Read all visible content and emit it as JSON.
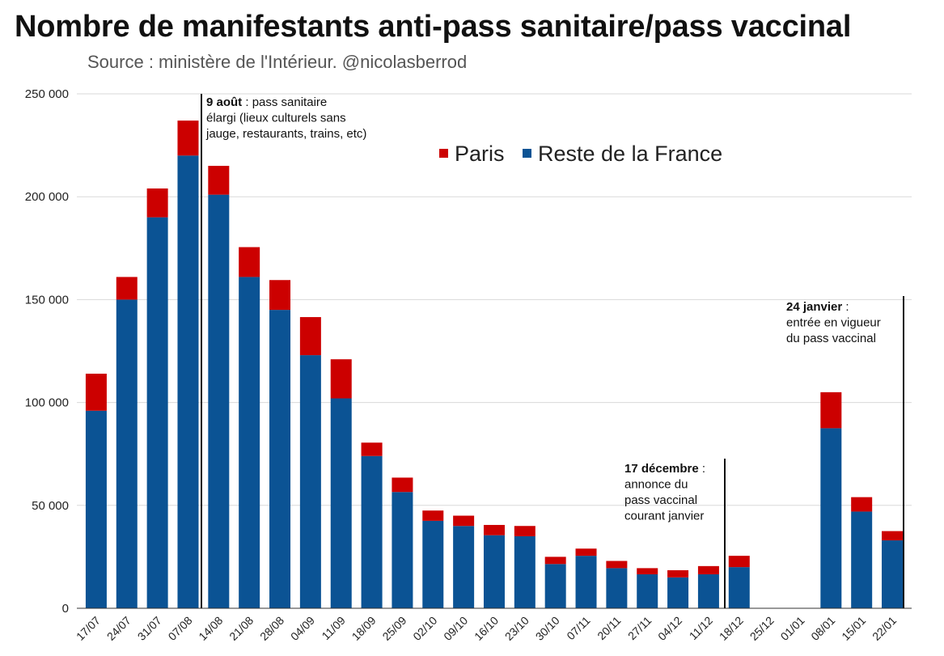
{
  "chart_data": {
    "type": "bar",
    "stacked": true,
    "title": "Nombre de manifestants anti-pass sanitaire/pass vaccinal",
    "subtitle": "Source : ministère de l'Intérieur. @nicolasberrod",
    "xlabel": "",
    "ylabel": "",
    "ylim": [
      0,
      250000
    ],
    "yticks": [
      0,
      50000,
      100000,
      150000,
      200000,
      250000
    ],
    "ytick_labels": [
      "0",
      "50 000",
      "100 000",
      "150 000",
      "200 000",
      "250 000"
    ],
    "grid": true,
    "legend_position": "top-center",
    "categories": [
      "17/07",
      "24/07",
      "31/07",
      "07/08",
      "14/08",
      "21/08",
      "28/08",
      "04/09",
      "11/09",
      "18/09",
      "25/09",
      "02/10",
      "09/10",
      "16/10",
      "23/10",
      "30/10",
      "07/11",
      "20/11",
      "27/11",
      "04/12",
      "11/12",
      "18/12",
      "25/12",
      "01/01",
      "08/01",
      "15/01",
      "22/01"
    ],
    "series": [
      {
        "name": "Reste de la France",
        "color": "#0b5394",
        "values": [
          96000,
          150000,
          190000,
          220000,
          201000,
          161000,
          145000,
          123000,
          102000,
          74000,
          56500,
          42500,
          40000,
          35500,
          35000,
          21500,
          25500,
          19500,
          16500,
          15000,
          16500,
          20000,
          0,
          0,
          87500,
          47000,
          33000
        ]
      },
      {
        "name": "Paris",
        "color": "#cc0000",
        "values": [
          18000,
          11000,
          14000,
          17000,
          14000,
          14500,
          14500,
          18500,
          19000,
          6500,
          7000,
          5000,
          5000,
          5000,
          5000,
          3500,
          3500,
          3500,
          3000,
          3500,
          4000,
          5500,
          0,
          0,
          17500,
          7000,
          4500
        ]
      }
    ],
    "annotations": [
      {
        "after_category": "07/08",
        "bold": "9 août",
        "rest": " : pass sanitaire",
        "lines": [
          "élargi (lieux culturels sans",
          "jauge, restaurants, trains, etc)"
        ]
      },
      {
        "after_category": "11/12",
        "bold": "17 décembre",
        "rest": " :",
        "lines": [
          "annonce du",
          "pass vaccinal",
          "courant janvier"
        ]
      },
      {
        "after_category": "22/01",
        "bold": "24 janvier",
        "rest": " :",
        "lines": [
          "entrée en vigueur",
          "du pass vaccinal"
        ]
      }
    ]
  }
}
